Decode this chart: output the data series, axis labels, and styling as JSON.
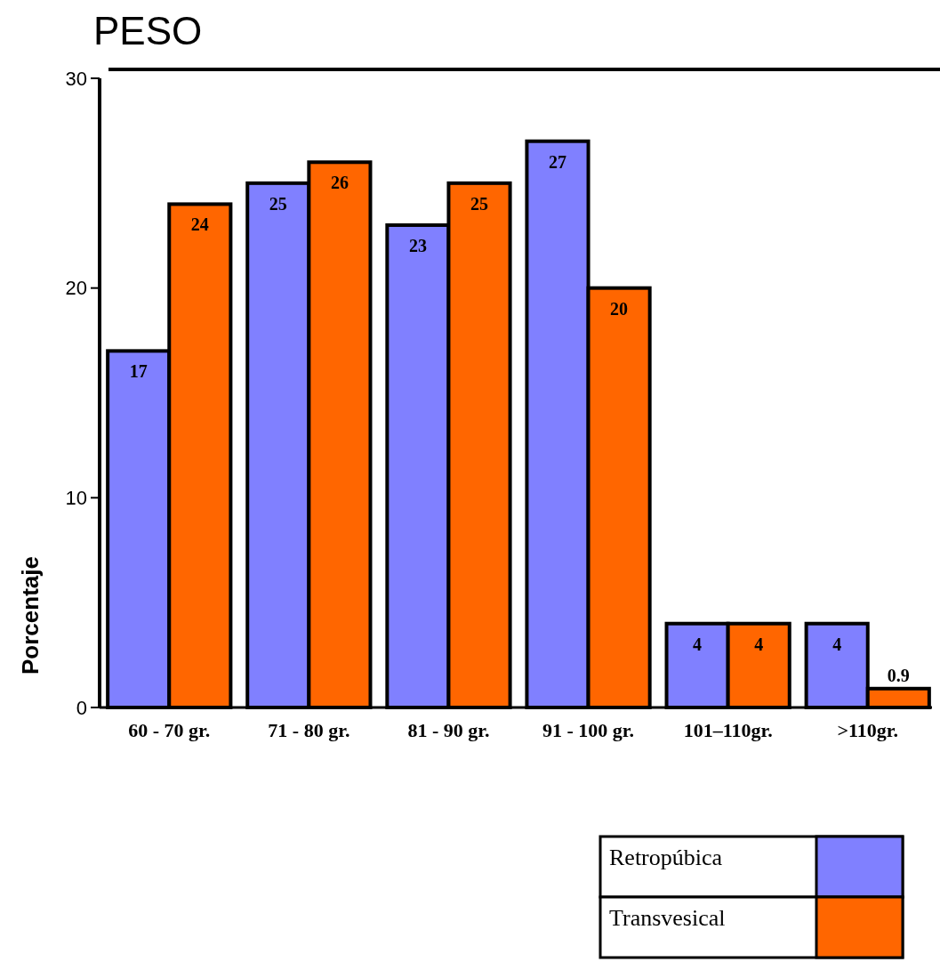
{
  "chart_data": {
    "type": "bar",
    "title": "PESO",
    "ylabel": "Porcentaje",
    "categories": [
      "60 - 70 gr.",
      "71 - 80 gr.",
      "81 - 90 gr.",
      "91 - 100 gr.",
      "101–110gr.",
      ">110gr."
    ],
    "series": [
      {
        "name": "Retropúbica",
        "color": "#8080ff",
        "values": [
          17,
          25,
          23,
          27,
          4,
          4
        ]
      },
      {
        "name": "Transvesical",
        "color": "#ff6600",
        "values": [
          24,
          26,
          25,
          20,
          4,
          0.9
        ]
      }
    ],
    "ylim": [
      0,
      30
    ],
    "yticks": [
      0,
      10,
      20,
      30
    ],
    "grid": false,
    "legend": "bottom right",
    "data_labels": true
  }
}
